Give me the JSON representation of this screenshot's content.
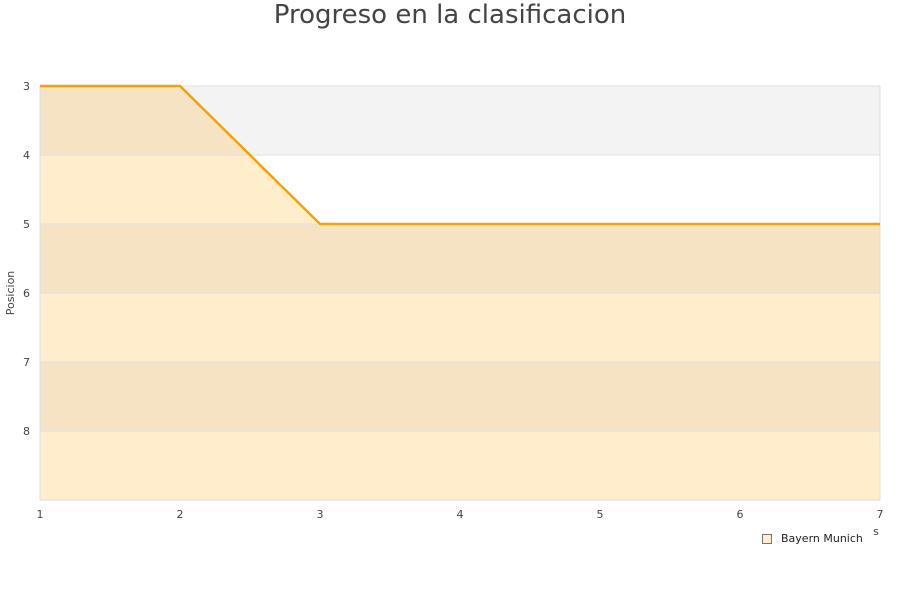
{
  "chart_data": {
    "type": "area",
    "title": "Progreso en la clasificacion",
    "ylabel": "Posicion",
    "xlabel": "s",
    "x": [
      1,
      2,
      3,
      4,
      5,
      6,
      7
    ],
    "series": [
      {
        "name": "Bayern Munich",
        "values": [
          3,
          3,
          5,
          5,
          5,
          5,
          5
        ]
      }
    ],
    "xlim": [
      1,
      7
    ],
    "ylim": [
      3,
      9
    ],
    "y_inverted": true,
    "y_ticks": [
      3,
      4,
      5,
      6,
      7,
      8
    ],
    "x_ticks": [
      1,
      2,
      3,
      4,
      5,
      6,
      7
    ],
    "grid": true,
    "legend_position": "bottom-right",
    "colors": {
      "line": "#f5a300",
      "fill_dark": "#f6e3c3",
      "fill_light": "#ffedcc",
      "bg_band": "#f3f3f3"
    }
  }
}
